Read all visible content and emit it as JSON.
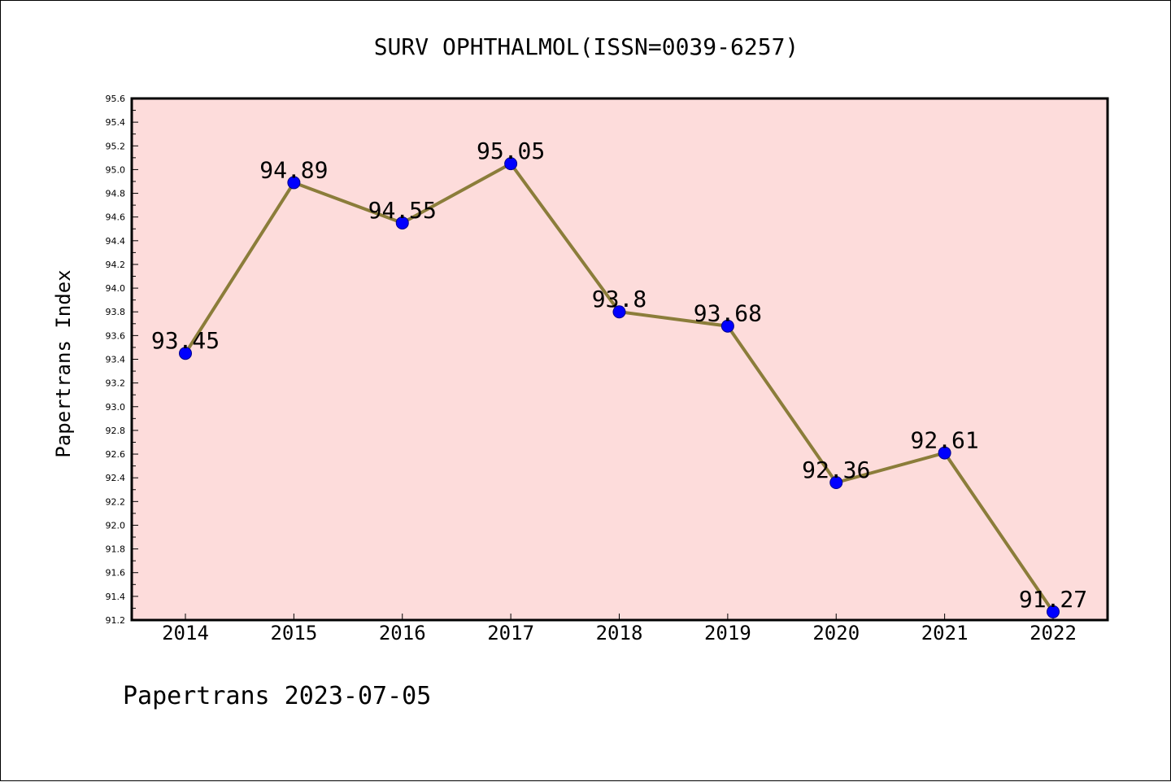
{
  "chart_data": {
    "type": "line",
    "title": "SURV OPHTHALMOL(ISSN=0039-6257)",
    "xlabel": "",
    "ylabel": "Papertrans Index",
    "categories": [
      "2014",
      "2015",
      "2016",
      "2017",
      "2018",
      "2019",
      "2020",
      "2021",
      "2022"
    ],
    "values": [
      93.45,
      94.89,
      94.55,
      95.05,
      93.8,
      93.68,
      92.36,
      92.61,
      91.27
    ],
    "data_labels": [
      "93.45",
      "94.89",
      "94.55",
      "95.05",
      "93.8",
      "93.68",
      "92.36",
      "92.61",
      "91.27"
    ],
    "ylim": [
      91.2,
      95.6
    ],
    "yticks": [
      "91.2",
      "91.4",
      "91.6",
      "91.8",
      "92.0",
      "92.2",
      "92.4",
      "92.6",
      "92.8",
      "93.0",
      "93.2",
      "93.4",
      "93.6",
      "93.8",
      "94.0",
      "94.2",
      "94.4",
      "94.6",
      "94.8",
      "95.0",
      "95.2",
      "95.4",
      "95.6"
    ],
    "grid": false,
    "legend": "none",
    "colors": {
      "plot_background": "#fddcdb",
      "line": "#8b7d3a",
      "marker": "#0000ff"
    }
  },
  "footer": "Papertrans 2023-07-05"
}
